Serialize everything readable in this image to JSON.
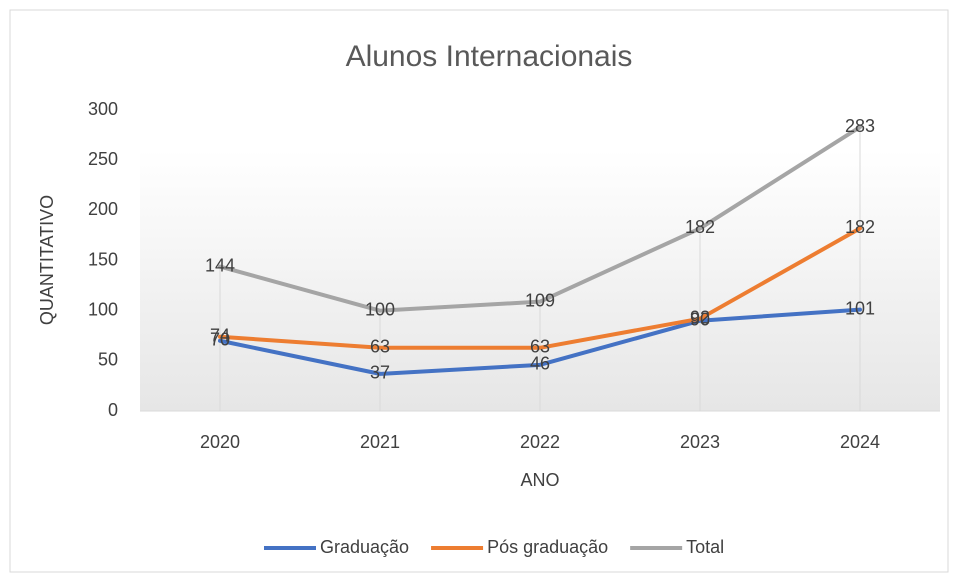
{
  "chart_data": {
    "type": "line",
    "title": "Alunos Internacionais",
    "x_label": "ANO",
    "y_label": "QUANTITATIVO",
    "categories": [
      "2020",
      "2021",
      "2022",
      "2023",
      "2024"
    ],
    "series": [
      {
        "name": "Graduação",
        "color": "#4472c4",
        "values": [
          70,
          37,
          46,
          90,
          101
        ]
      },
      {
        "name": "Pós graduação",
        "color": "#ed7d31",
        "values": [
          74,
          63,
          63,
          92,
          182
        ]
      },
      {
        "name": "Total",
        "color": "#a5a5a5",
        "values": [
          144,
          100,
          109,
          182,
          283
        ]
      }
    ],
    "ylim": [
      0,
      300
    ],
    "yticks": [
      0,
      50,
      100,
      150,
      200,
      250,
      300
    ],
    "grid": false,
    "legend": "bottom",
    "data_labels": true
  }
}
